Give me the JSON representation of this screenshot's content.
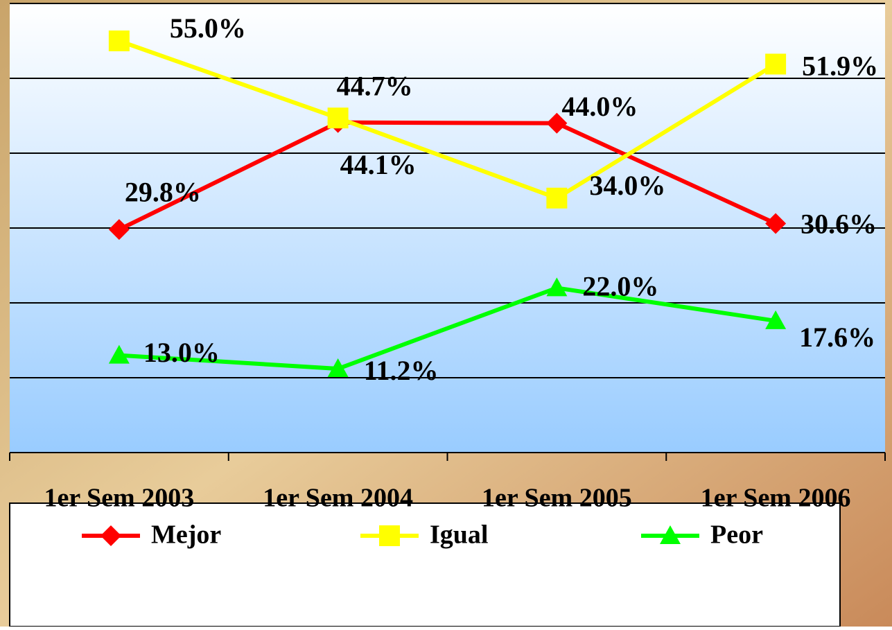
{
  "chart_data": {
    "type": "line",
    "categories": [
      "1er Sem 2003",
      "1er Sem 2004",
      "1er Sem 2005",
      "1er Sem 2006"
    ],
    "series": [
      {
        "name": "Mejor",
        "color": "#ff0000",
        "marker": "diamond",
        "values": [
          29.8,
          44.1,
          44.0,
          30.6
        ],
        "value_labels": [
          "29.8%",
          "44.1%",
          "44.0%",
          "30.6%"
        ]
      },
      {
        "name": "Igual",
        "color": "#ffff00",
        "marker": "square",
        "values": [
          55.0,
          44.7,
          34.0,
          51.9
        ],
        "value_labels": [
          "55.0%",
          "44.7%",
          "34.0%",
          "51.9%"
        ]
      },
      {
        "name": "Peor",
        "color": "#00ff00",
        "marker": "triangle",
        "values": [
          13.0,
          11.2,
          22.0,
          17.6
        ],
        "value_labels": [
          "13.0%",
          "11.2%",
          "22.0%",
          "17.6%"
        ]
      }
    ],
    "ylim": [
      0,
      60
    ],
    "yticks": [
      0,
      10,
      20,
      30,
      40,
      50,
      60
    ],
    "grid": true,
    "legend": "bottom"
  }
}
